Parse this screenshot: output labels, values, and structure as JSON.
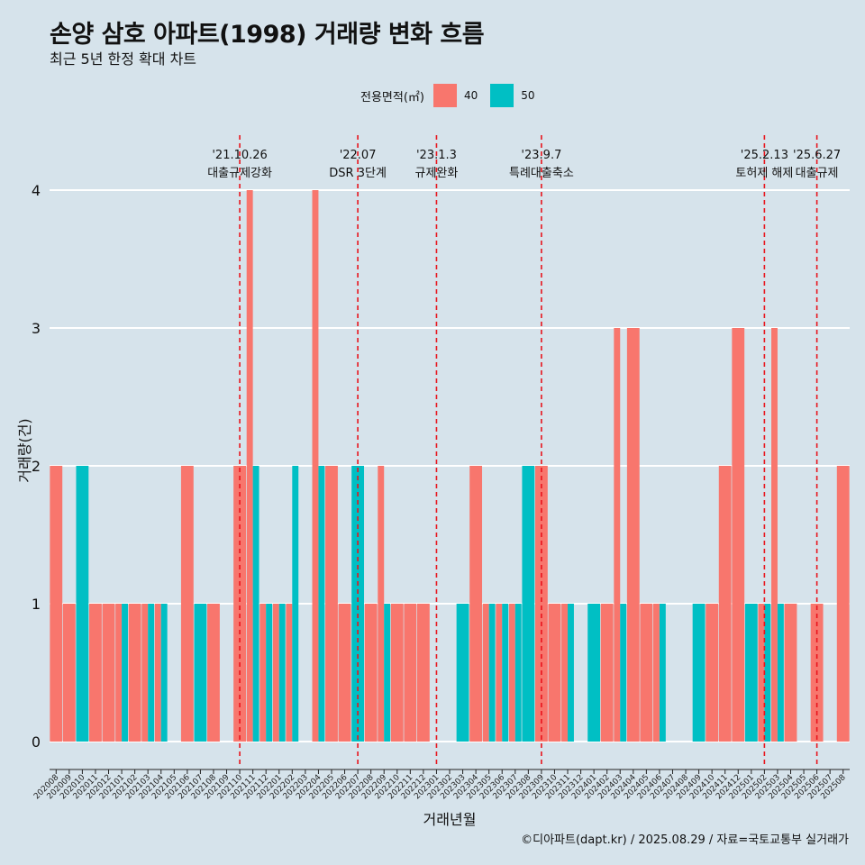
{
  "title": "손양 삼호 아파트(1998) 거래량 변화 흐름",
  "subtitle": "최근 5년 한정 확대 차트",
  "caption": "©디아파트(dapt.kr) / 2025.08.29 / 자료=국토교통부 실거래가",
  "colors": {
    "background": "#d6e3eb",
    "s40": "#f8766d",
    "s50": "#00bfc4",
    "event_line": "#e8141c"
  },
  "chart_data": {
    "type": "bar",
    "xlabel": "거래년월",
    "ylabel": "거래량(건)",
    "ylim": [
      0,
      4
    ],
    "yticks": [
      0,
      1,
      2,
      3,
      4
    ],
    "grid": true,
    "legend": {
      "title": "전용면적(㎡)",
      "position": "top",
      "entries": [
        "40",
        "50"
      ]
    },
    "categories": [
      "202008",
      "202009",
      "202010",
      "202011",
      "202012",
      "202101",
      "202102",
      "202103",
      "202104",
      "202105",
      "202106",
      "202107",
      "202108",
      "202109",
      "202110",
      "202111",
      "202112",
      "202201",
      "202202",
      "202203",
      "202204",
      "202205",
      "202206",
      "202207",
      "202208",
      "202209",
      "202210",
      "202211",
      "202212",
      "202301",
      "202302",
      "202303",
      "202304",
      "202305",
      "202306",
      "202307",
      "202308",
      "202309",
      "202310",
      "202311",
      "202312",
      "202401",
      "202402",
      "202403",
      "202404",
      "202405",
      "202406",
      "202407",
      "202408",
      "202409",
      "202410",
      "202411",
      "202412",
      "202501",
      "202502",
      "202503",
      "202504",
      "202505",
      "202506",
      "202507",
      "202508"
    ],
    "series": [
      {
        "name": "40",
        "values": [
          2,
          1,
          0,
          1,
          1,
          1,
          1,
          1,
          1,
          0,
          2,
          0,
          1,
          0,
          2,
          4,
          1,
          1,
          1,
          0,
          4,
          2,
          1,
          0,
          1,
          2,
          1,
          1,
          1,
          0,
          0,
          0,
          2,
          1,
          1,
          1,
          0,
          2,
          1,
          1,
          0,
          0,
          1,
          3,
          3,
          1,
          1,
          0,
          0,
          0,
          1,
          2,
          3,
          0,
          1,
          3,
          1,
          0,
          1,
          0,
          2
        ]
      },
      {
        "name": "50",
        "values": [
          0,
          0,
          2,
          0,
          0,
          1,
          0,
          1,
          1,
          0,
          0,
          1,
          0,
          0,
          0,
          2,
          1,
          1,
          2,
          0,
          2,
          0,
          0,
          2,
          0,
          1,
          0,
          0,
          0,
          0,
          0,
          1,
          0,
          1,
          1,
          1,
          2,
          0,
          0,
          1,
          0,
          1,
          0,
          1,
          0,
          0,
          1,
          0,
          0,
          1,
          0,
          0,
          0,
          1,
          1,
          1,
          0,
          0,
          0,
          0,
          0
        ]
      }
    ],
    "events": [
      {
        "date": "'21.10.26",
        "label": "대출규제강화",
        "category": "202110"
      },
      {
        "date": "'22.07",
        "label": "DSR 3단계",
        "category": "202207"
      },
      {
        "date": "'23.1.3",
        "label": "규제완화",
        "category": "202301"
      },
      {
        "date": "'23.9.7",
        "label": "특례대출축소",
        "category": "202309"
      },
      {
        "date": "'25.2.13",
        "label": "토허제 해제",
        "category": "202502"
      },
      {
        "date": "'25.6.27",
        "label": "대출규제",
        "category": "202506"
      }
    ]
  }
}
